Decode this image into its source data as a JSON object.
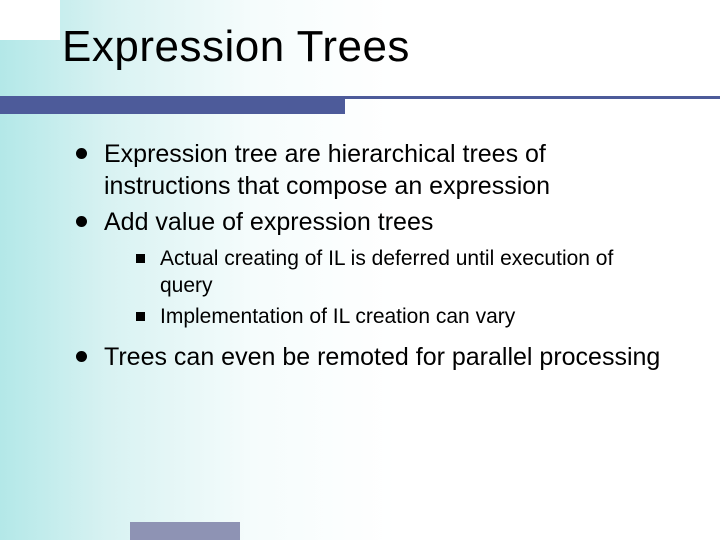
{
  "slide": {
    "title": "Expression Trees",
    "title_fontsize": 44,
    "title_color": "#000000",
    "accent_bar_color": "#4d5b9a",
    "footer_bar_color": "#8e93b4",
    "background_gradient": [
      "#b3e8e8",
      "#ffffff"
    ],
    "bullets": [
      {
        "text": "Expression tree are hierarchical trees of instructions that compose an expression",
        "level": 1
      },
      {
        "text": "Add value of expression trees",
        "level": 1
      },
      {
        "text": "Actual creating of IL is deferred until execution of query",
        "level": 2
      },
      {
        "text": "Implementation of IL creation can vary",
        "level": 2
      },
      {
        "text": "Trees can even be remoted for parallel processing",
        "level": 1
      }
    ],
    "l1_fontsize": 25,
    "l2_fontsize": 21,
    "bullet_l1_marker": "disc",
    "bullet_l2_marker": "square",
    "text_color": "#000000"
  }
}
